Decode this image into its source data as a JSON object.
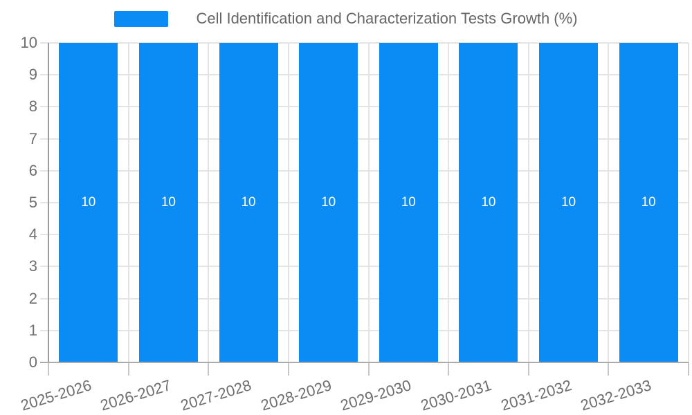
{
  "legend": {
    "label": "Cell Identification and Characterization Tests Growth (%)"
  },
  "chart_data": {
    "type": "bar",
    "title": "Cell Identification and Characterization Tests Growth (%)",
    "categories": [
      "2025-2026",
      "2026-2027",
      "2027-2028",
      "2028-2029",
      "2029-2030",
      "2030-2031",
      "2031-2032",
      "2032-2033"
    ],
    "series": [
      {
        "name": "Cell Identification and Characterization Tests Growth (%)",
        "values": [
          10,
          10,
          10,
          10,
          10,
          10,
          10,
          10
        ]
      }
    ],
    "bar_value_labels": [
      "10",
      "10",
      "10",
      "10",
      "10",
      "10",
      "10",
      "10"
    ],
    "ylabel": "",
    "xlabel": "",
    "ylim": [
      0,
      10
    ],
    "yticks": [
      0,
      1,
      2,
      3,
      4,
      5,
      6,
      7,
      8,
      9,
      10
    ],
    "grid": true,
    "legend_position": "top-center",
    "x_tick_rotation_deg": -17,
    "colors": {
      "bar": "#0b8cf5",
      "gridline": "#e4e4e4",
      "axis": "#ababab",
      "tick_mark": "#c6c6c6",
      "tick_text": "#6e6e6e",
      "title_text": "#666666",
      "bar_label_text": "#ffffff",
      "background": "#ffffff"
    }
  }
}
